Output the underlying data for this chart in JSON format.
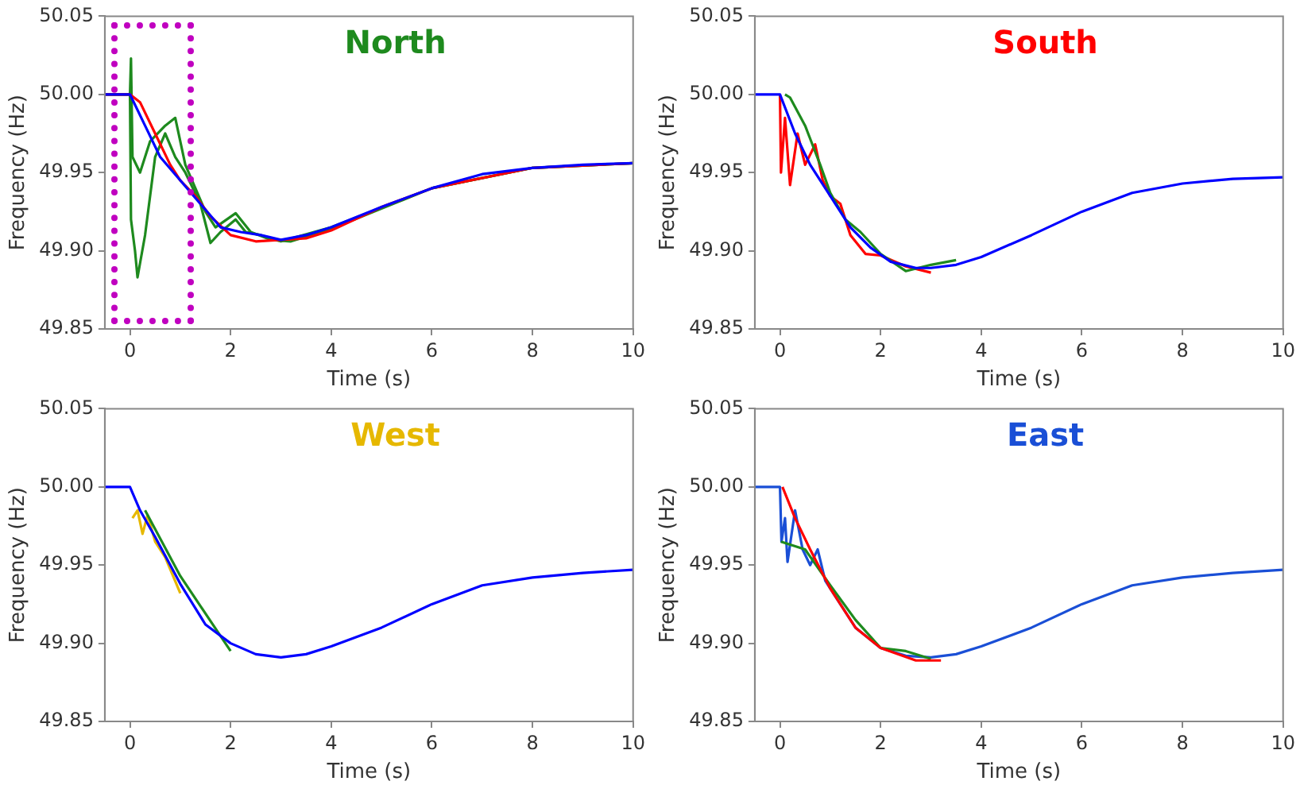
{
  "chart_data": [
    {
      "type": "line",
      "title": "North",
      "xlabel": "Time (s)",
      "ylabel": "Frequency (Hz)",
      "xlim": [
        -0.5,
        10
      ],
      "ylim": [
        49.85,
        50.05
      ],
      "xticks": [
        0,
        2,
        4,
        6,
        8,
        10
      ],
      "yticks": [
        {
          "value": 49.85,
          "label": "49.85"
        },
        {
          "value": 49.9,
          "label": "49.90"
        },
        {
          "value": 49.95,
          "label": "49.95"
        },
        {
          "value": 50,
          "label": "50.00"
        },
        {
          "value": 50.05,
          "label": "50.05"
        }
      ],
      "series": [
        {
          "color": "#1e8a1e",
          "x": [
            -0.5,
            0,
            0.02,
            0.1,
            0.15,
            0.3,
            0.5,
            0.7,
            0.9,
            1.1,
            1.4,
            1.6,
            1.8,
            2.1,
            2.3,
            2.6,
            3,
            4,
            6,
            8,
            10
          ],
          "values": [
            50,
            50,
            49.92,
            49.9,
            49.883,
            49.91,
            49.96,
            49.975,
            49.96,
            49.95,
            49.93,
            49.905,
            49.912,
            49.92,
            49.912,
            49.91,
            49.906,
            49.915,
            49.94,
            49.953,
            49.956
          ]
        },
        {
          "color": "#1e8a1e",
          "x": [
            -0.5,
            0,
            0.02,
            0.05,
            0.2,
            0.4,
            0.7,
            0.9,
            1.1,
            1.3,
            1.5,
            1.7,
            2.1,
            2.4,
            2.8,
            3.2,
            4,
            6,
            8,
            10
          ],
          "values": [
            50,
            50,
            50.023,
            49.96,
            49.95,
            49.97,
            49.98,
            49.985,
            49.955,
            49.94,
            49.925,
            49.915,
            49.924,
            49.912,
            49.907,
            49.906,
            49.914,
            49.94,
            49.953,
            49.956
          ]
        },
        {
          "color": "#ff0000",
          "x": [
            -0.5,
            0,
            0.2,
            0.5,
            0.8,
            1,
            1.3,
            1.6,
            2,
            2.5,
            3,
            3.5,
            4,
            5,
            6,
            8,
            10
          ],
          "values": [
            50,
            50,
            49.995,
            49.975,
            49.955,
            49.945,
            49.935,
            49.922,
            49.91,
            49.906,
            49.907,
            49.908,
            49.913,
            49.928,
            49.94,
            49.953,
            49.956
          ]
        },
        {
          "color": "#0000ff",
          "x": [
            -0.5,
            0,
            0.3,
            0.6,
            1,
            1.4,
            1.8,
            2.2,
            2.6,
            3,
            3.5,
            4,
            5,
            6,
            7,
            8,
            9,
            10
          ],
          "values": [
            50,
            50,
            49.98,
            49.96,
            49.945,
            49.93,
            49.915,
            49.912,
            49.91,
            49.907,
            49.91,
            49.915,
            49.928,
            49.94,
            49.949,
            49.953,
            49.955,
            49.956
          ]
        }
      ]
    },
    {
      "type": "line",
      "title": "South",
      "xlabel": "Time (s)",
      "ylabel": "Frequency (Hz)",
      "xlim": [
        -0.5,
        10
      ],
      "ylim": [
        49.85,
        50.05
      ],
      "xticks": [
        0,
        2,
        4,
        6,
        8,
        10
      ],
      "yticks": [
        {
          "value": 49.85,
          "label": "49.85"
        },
        {
          "value": 49.9,
          "label": "49.90"
        },
        {
          "value": 49.95,
          "label": "49.95"
        },
        {
          "value": 50,
          "label": "50.00"
        },
        {
          "value": 50.05,
          "label": "50.05"
        }
      ],
      "series": [
        {
          "color": "#ff0000",
          "x": [
            0,
            0.02,
            0.1,
            0.2,
            0.35,
            0.5,
            0.7,
            0.85,
            1,
            1.2,
            1.4,
            1.7,
            2,
            2.5,
            3
          ],
          "values": [
            50,
            49.95,
            49.985,
            49.942,
            49.975,
            49.955,
            49.968,
            49.945,
            49.935,
            49.93,
            49.91,
            49.898,
            49.897,
            49.89,
            49.886
          ]
        },
        {
          "color": "#1e8a1e",
          "x": [
            0.1,
            0.2,
            0.5,
            0.8,
            1,
            1.3,
            1.6,
            2,
            2.5,
            3,
            3.5
          ],
          "values": [
            50,
            49.998,
            49.98,
            49.955,
            49.937,
            49.92,
            49.912,
            49.898,
            49.887,
            49.891,
            49.894
          ]
        },
        {
          "color": "#0000ff",
          "x": [
            -0.5,
            0,
            0.3,
            0.6,
            1,
            1.4,
            1.8,
            2.2,
            2.7,
            3,
            3.5,
            4,
            5,
            6,
            7,
            8,
            9,
            10
          ],
          "values": [
            50,
            50,
            49.975,
            49.955,
            49.935,
            49.915,
            49.902,
            49.893,
            49.889,
            49.889,
            49.891,
            49.896,
            49.91,
            49.925,
            49.937,
            49.943,
            49.946,
            49.947
          ]
        }
      ]
    },
    {
      "type": "line",
      "title": "West",
      "xlabel": "Time (s)",
      "ylabel": "Frequency (Hz)",
      "xlim": [
        -0.5,
        10
      ],
      "ylim": [
        49.85,
        50.05
      ],
      "xticks": [
        0,
        2,
        4,
        6,
        8,
        10
      ],
      "yticks": [
        {
          "value": 49.85,
          "label": "49.85"
        },
        {
          "value": 49.9,
          "label": "49.90"
        },
        {
          "value": 49.95,
          "label": "49.95"
        },
        {
          "value": 50,
          "label": "50.00"
        },
        {
          "value": 50.05,
          "label": "50.05"
        }
      ],
      "series": [
        {
          "color": "#e6b800",
          "x": [
            0.05,
            0.15,
            0.25,
            0.35,
            0.5,
            0.7,
            1
          ],
          "values": [
            49.98,
            49.985,
            49.97,
            49.982,
            49.965,
            49.955,
            49.932
          ]
        },
        {
          "color": "#1e8a1e",
          "x": [
            0.3,
            1,
            2
          ],
          "values": [
            49.985,
            49.943,
            49.895
          ]
        },
        {
          "color": "#0000ff",
          "x": [
            -0.5,
            0,
            0.2,
            0.5,
            1,
            1.5,
            2,
            2.5,
            3,
            3.5,
            4,
            5,
            6,
            7,
            8,
            9,
            10
          ],
          "values": [
            50,
            50,
            49.985,
            49.968,
            49.938,
            49.912,
            49.9,
            49.893,
            49.891,
            49.893,
            49.898,
            49.91,
            49.925,
            49.937,
            49.942,
            49.945,
            49.947
          ]
        }
      ]
    },
    {
      "type": "line",
      "title": "East",
      "xlabel": "Time (s)",
      "ylabel": "Frequency (Hz)",
      "xlim": [
        -0.5,
        10
      ],
      "ylim": [
        49.85,
        50.05
      ],
      "xticks": [
        0,
        2,
        4,
        6,
        8,
        10
      ],
      "yticks": [
        {
          "value": 49.85,
          "label": "49.85"
        },
        {
          "value": 49.9,
          "label": "49.90"
        },
        {
          "value": 49.95,
          "label": "49.95"
        },
        {
          "value": 50,
          "label": "50.00"
        },
        {
          "value": 50.05,
          "label": "50.05"
        }
      ],
      "series": [
        {
          "color": "#1a4fd6",
          "x": [
            -0.5,
            0,
            0.03,
            0.1,
            0.15,
            0.3,
            0.45,
            0.6,
            0.75,
            0.9,
            1.1,
            1.5,
            2,
            2.5,
            3,
            3.5,
            4,
            5,
            6,
            7,
            8,
            9,
            10
          ],
          "values": [
            50,
            50,
            49.965,
            49.98,
            49.952,
            49.985,
            49.96,
            49.95,
            49.96,
            49.94,
            49.93,
            49.91,
            49.897,
            49.892,
            49.891,
            49.893,
            49.898,
            49.91,
            49.925,
            49.937,
            49.942,
            49.945,
            49.947
          ]
        },
        {
          "color": "#1e8a1e",
          "x": [
            0.02,
            0.5,
            1,
            1.5,
            2,
            2.5,
            3
          ],
          "values": [
            49.965,
            49.96,
            49.937,
            49.915,
            49.897,
            49.895,
            49.89
          ]
        },
        {
          "color": "#ff0000",
          "x": [
            0.05,
            0.3,
            0.6,
            1,
            1.5,
            2,
            2.7,
            3.2
          ],
          "values": [
            50,
            49.98,
            49.96,
            49.935,
            49.91,
            49.897,
            49.889,
            49.889
          ]
        }
      ]
    }
  ]
}
